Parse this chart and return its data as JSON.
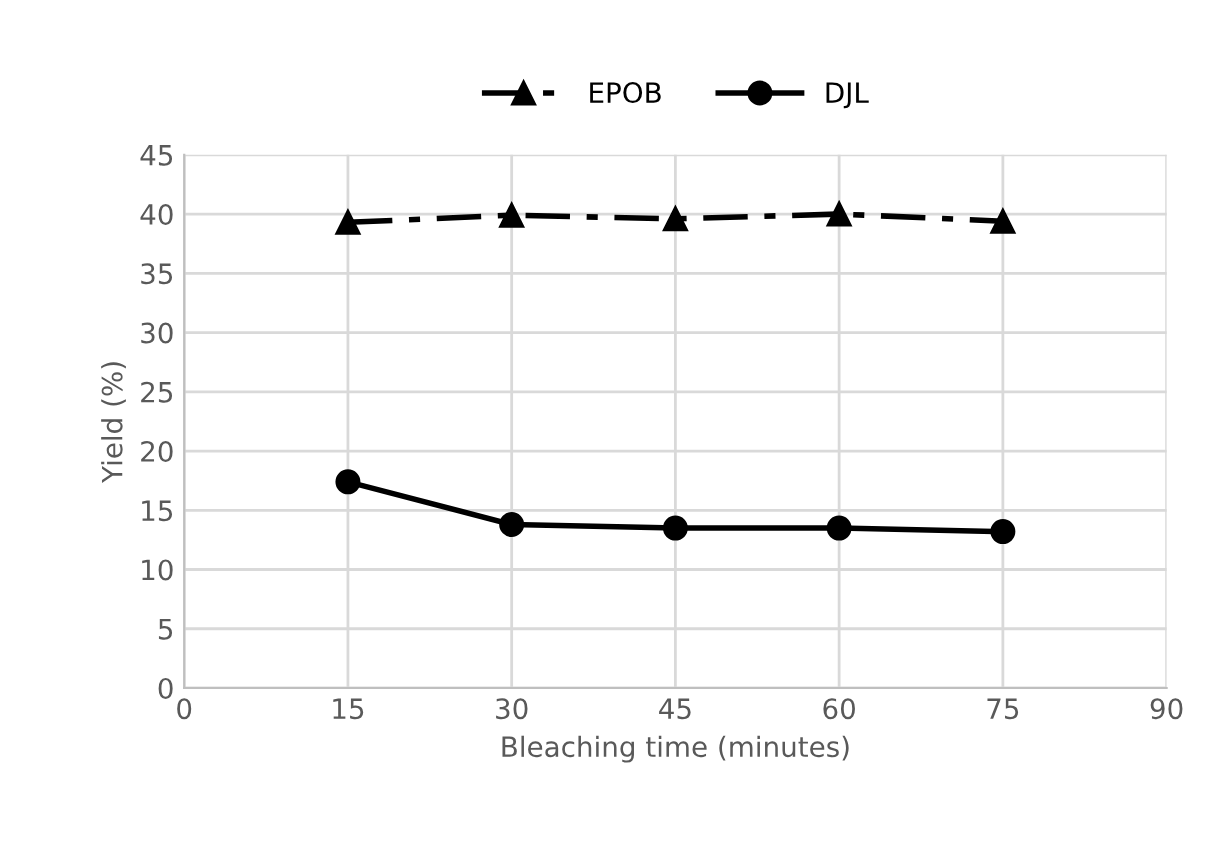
{
  "chart_data": {
    "type": "line",
    "xlabel": "Bleaching time (minutes)",
    "ylabel": "Yield (%)",
    "x": [
      15,
      30,
      45,
      60,
      75
    ],
    "series": [
      {
        "name": "EPOB",
        "color": "#000000",
        "marker": "triangle",
        "line_style": "dashdot",
        "values": [
          39.3,
          39.9,
          39.6,
          40.0,
          39.4
        ]
      },
      {
        "name": "DJL",
        "color": "#000000",
        "marker": "circle",
        "line_style": "solid",
        "values": [
          17.4,
          13.8,
          13.5,
          13.5,
          13.2
        ]
      }
    ],
    "xlim": [
      0,
      90
    ],
    "xticks": [
      0,
      15,
      30,
      45,
      60,
      75,
      90
    ],
    "ylim": [
      0,
      45
    ],
    "yticks": [
      0,
      5,
      10,
      15,
      20,
      25,
      30,
      35,
      40,
      45
    ],
    "grid": true,
    "legend": "top"
  }
}
